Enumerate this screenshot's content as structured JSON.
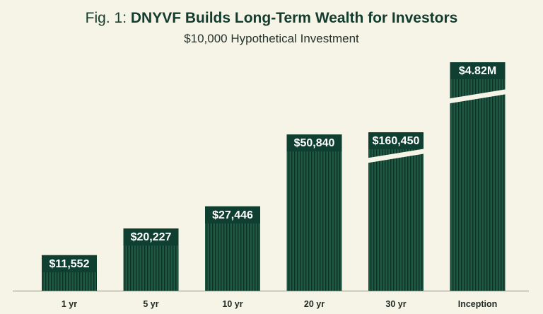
{
  "figure": {
    "prefix": "Fig. 1: ",
    "title": "DNYVF Builds Long-Term Wealth for Investors",
    "subtitle": "$10,000 Hypothetical Investment"
  },
  "colors": {
    "background": "#f6f3e7",
    "bar_fill": "#1c5a44",
    "bar_stripe": "#0b3125",
    "label_bg": "#0e3f30",
    "label_text": "#ffffff",
    "axis_text": "#1f2a25",
    "title_text": "#123c2e"
  },
  "chart_data": {
    "type": "bar",
    "title": "DNYVF Builds Long-Term Wealth for Investors",
    "subtitle": "$10,000 Hypothetical Investment",
    "categories": [
      "1 yr",
      "5 yr",
      "10 yr",
      "20 yr",
      "30 yr",
      "Inception"
    ],
    "values": [
      11552,
      20227,
      27446,
      50840,
      160450,
      4820000
    ],
    "data_labels": [
      "$11,552",
      "$20,227",
      "$27,446",
      "$50,840",
      "$160,450",
      "$4.82M"
    ],
    "axis_broken": [
      false,
      false,
      false,
      false,
      true,
      true
    ],
    "xlabel": "",
    "ylabel": "",
    "grid": false,
    "legend": false
  }
}
